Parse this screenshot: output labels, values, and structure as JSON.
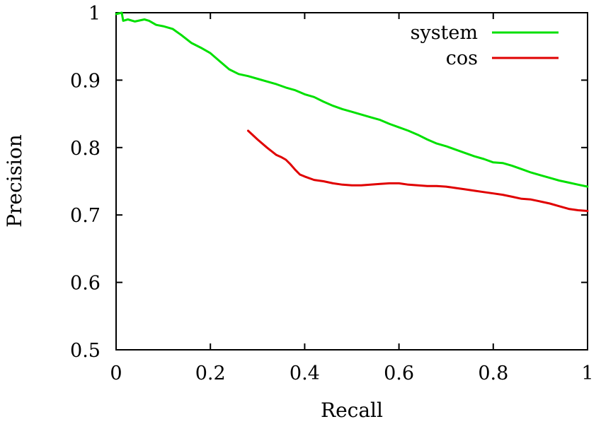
{
  "chart_data": {
    "type": "line",
    "xlabel": "Recall",
    "ylabel": "Precision",
    "xlim": [
      0,
      1
    ],
    "ylim": [
      0.5,
      1
    ],
    "x_ticks": [
      {
        "value": 0,
        "label": "0"
      },
      {
        "value": 0.2,
        "label": "0.2"
      },
      {
        "value": 0.4,
        "label": "0.4"
      },
      {
        "value": 0.6,
        "label": "0.6"
      },
      {
        "value": 0.8,
        "label": "0.8"
      },
      {
        "value": 1,
        "label": "1"
      }
    ],
    "y_ticks": [
      {
        "value": 0.5,
        "label": "0.5"
      },
      {
        "value": 0.6,
        "label": "0.6"
      },
      {
        "value": 0.7,
        "label": "0.7"
      },
      {
        "value": 0.8,
        "label": "0.8"
      },
      {
        "value": 0.9,
        "label": "0.9"
      },
      {
        "value": 1,
        "label": "1"
      }
    ],
    "grid": false,
    "legend_position": "top-right",
    "series": [
      {
        "name": "system",
        "color": "#00e000",
        "points": [
          [
            0.0,
            0.998
          ],
          [
            0.012,
            1.0
          ],
          [
            0.015,
            0.988
          ],
          [
            0.025,
            0.99
          ],
          [
            0.04,
            0.987
          ],
          [
            0.06,
            0.99
          ],
          [
            0.07,
            0.988
          ],
          [
            0.085,
            0.982
          ],
          [
            0.1,
            0.98
          ],
          [
            0.12,
            0.976
          ],
          [
            0.14,
            0.966
          ],
          [
            0.16,
            0.955
          ],
          [
            0.18,
            0.948
          ],
          [
            0.2,
            0.94
          ],
          [
            0.22,
            0.928
          ],
          [
            0.24,
            0.916
          ],
          [
            0.26,
            0.909
          ],
          [
            0.28,
            0.906
          ],
          [
            0.3,
            0.902
          ],
          [
            0.32,
            0.898
          ],
          [
            0.34,
            0.894
          ],
          [
            0.36,
            0.889
          ],
          [
            0.38,
            0.885
          ],
          [
            0.4,
            0.879
          ],
          [
            0.42,
            0.875
          ],
          [
            0.44,
            0.868
          ],
          [
            0.46,
            0.862
          ],
          [
            0.48,
            0.857
          ],
          [
            0.5,
            0.853
          ],
          [
            0.52,
            0.849
          ],
          [
            0.54,
            0.845
          ],
          [
            0.56,
            0.841
          ],
          [
            0.58,
            0.835
          ],
          [
            0.6,
            0.83
          ],
          [
            0.62,
            0.825
          ],
          [
            0.64,
            0.819
          ],
          [
            0.66,
            0.812
          ],
          [
            0.68,
            0.806
          ],
          [
            0.7,
            0.802
          ],
          [
            0.72,
            0.797
          ],
          [
            0.74,
            0.792
          ],
          [
            0.76,
            0.787
          ],
          [
            0.78,
            0.783
          ],
          [
            0.8,
            0.778
          ],
          [
            0.82,
            0.777
          ],
          [
            0.84,
            0.773
          ],
          [
            0.86,
            0.768
          ],
          [
            0.88,
            0.763
          ],
          [
            0.9,
            0.759
          ],
          [
            0.92,
            0.755
          ],
          [
            0.94,
            0.751
          ],
          [
            0.96,
            0.748
          ],
          [
            0.98,
            0.745
          ],
          [
            1.0,
            0.742
          ]
        ]
      },
      {
        "name": "cos",
        "color": "#e00000",
        "points": [
          [
            0.28,
            0.825
          ],
          [
            0.3,
            0.812
          ],
          [
            0.32,
            0.8
          ],
          [
            0.34,
            0.789
          ],
          [
            0.35,
            0.786
          ],
          [
            0.36,
            0.782
          ],
          [
            0.37,
            0.775
          ],
          [
            0.38,
            0.767
          ],
          [
            0.39,
            0.76
          ],
          [
            0.4,
            0.757
          ],
          [
            0.42,
            0.752
          ],
          [
            0.44,
            0.75
          ],
          [
            0.46,
            0.747
          ],
          [
            0.48,
            0.745
          ],
          [
            0.5,
            0.744
          ],
          [
            0.52,
            0.744
          ],
          [
            0.54,
            0.745
          ],
          [
            0.56,
            0.746
          ],
          [
            0.58,
            0.747
          ],
          [
            0.6,
            0.747
          ],
          [
            0.62,
            0.745
          ],
          [
            0.64,
            0.744
          ],
          [
            0.66,
            0.743
          ],
          [
            0.68,
            0.743
          ],
          [
            0.7,
            0.742
          ],
          [
            0.72,
            0.74
          ],
          [
            0.74,
            0.738
          ],
          [
            0.76,
            0.736
          ],
          [
            0.78,
            0.734
          ],
          [
            0.8,
            0.732
          ],
          [
            0.82,
            0.73
          ],
          [
            0.84,
            0.727
          ],
          [
            0.86,
            0.724
          ],
          [
            0.88,
            0.723
          ],
          [
            0.9,
            0.72
          ],
          [
            0.92,
            0.717
          ],
          [
            0.94,
            0.713
          ],
          [
            0.96,
            0.709
          ],
          [
            0.98,
            0.707
          ],
          [
            1.0,
            0.706
          ]
        ]
      }
    ]
  }
}
